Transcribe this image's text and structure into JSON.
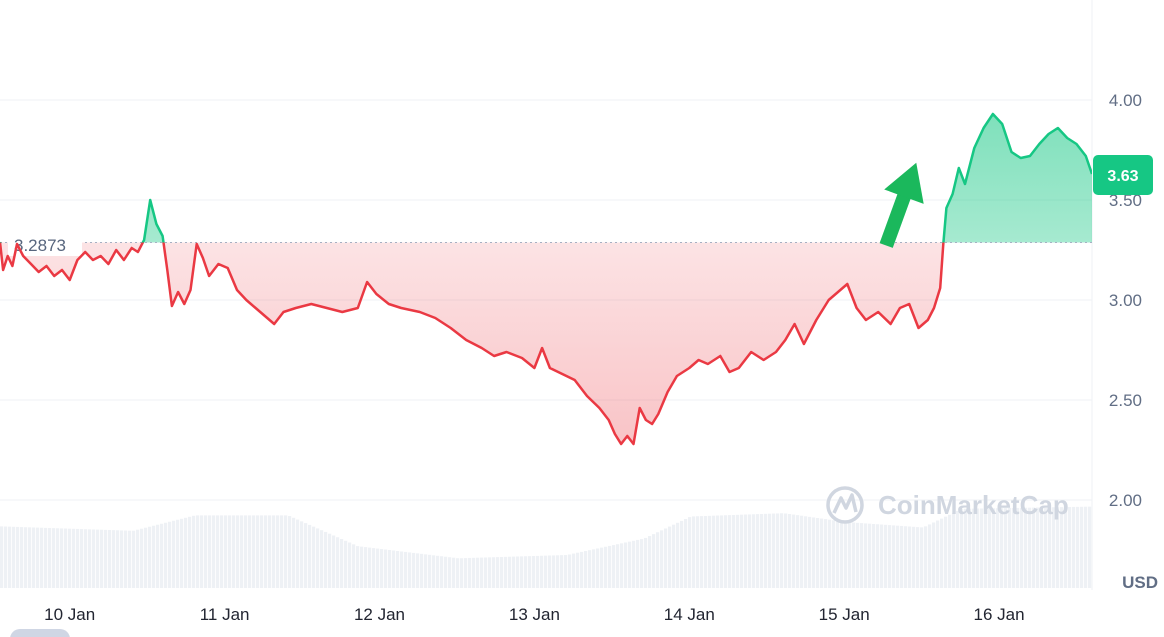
{
  "chart_data": {
    "type": "area",
    "unit": "USD",
    "reference_price": "3.2873",
    "current_price": "3.63",
    "ylim": [
      1.5,
      4.5
    ],
    "y_ticks": [
      "4.00",
      "3.50",
      "3.00",
      "2.50",
      "2.00"
    ],
    "x_ticks": [
      "10 Jan",
      "11 Jan",
      "12 Jan",
      "13 Jan",
      "14 Jan",
      "15 Jan",
      "16 Jan"
    ],
    "watermark": "CoinMarketCap",
    "colors": {
      "up": "#16c784",
      "down": "#ea3943",
      "grid": "#eff2f5",
      "badge": "#16c784",
      "arrow": "#1bb85c"
    },
    "annotations": [
      {
        "type": "arrow",
        "direction": "up",
        "color": "#1bb85c"
      }
    ],
    "series": [
      {
        "points": [
          [
            9.55,
            3.29
          ],
          [
            9.57,
            3.15
          ],
          [
            9.6,
            3.22
          ],
          [
            9.63,
            3.17
          ],
          [
            9.66,
            3.28
          ],
          [
            9.7,
            3.22
          ],
          [
            9.75,
            3.18
          ],
          [
            9.8,
            3.14
          ],
          [
            9.85,
            3.17
          ],
          [
            9.9,
            3.12
          ],
          [
            9.95,
            3.15
          ],
          [
            10.0,
            3.1
          ],
          [
            10.05,
            3.2
          ],
          [
            10.1,
            3.24
          ],
          [
            10.15,
            3.2
          ],
          [
            10.2,
            3.22
          ],
          [
            10.25,
            3.18
          ],
          [
            10.3,
            3.25
          ],
          [
            10.35,
            3.2
          ],
          [
            10.4,
            3.26
          ],
          [
            10.44,
            3.24
          ],
          [
            10.48,
            3.3
          ],
          [
            10.52,
            3.5
          ],
          [
            10.56,
            3.38
          ],
          [
            10.6,
            3.32
          ],
          [
            10.63,
            3.15
          ],
          [
            10.66,
            2.97
          ],
          [
            10.7,
            3.04
          ],
          [
            10.74,
            2.98
          ],
          [
            10.78,
            3.05
          ],
          [
            10.82,
            3.28
          ],
          [
            10.86,
            3.21
          ],
          [
            10.9,
            3.12
          ],
          [
            10.96,
            3.18
          ],
          [
            11.02,
            3.16
          ],
          [
            11.08,
            3.05
          ],
          [
            11.14,
            3.0
          ],
          [
            11.2,
            2.96
          ],
          [
            11.26,
            2.92
          ],
          [
            11.32,
            2.88
          ],
          [
            11.38,
            2.94
          ],
          [
            11.46,
            2.96
          ],
          [
            11.56,
            2.98
          ],
          [
            11.66,
            2.96
          ],
          [
            11.76,
            2.94
          ],
          [
            11.86,
            2.96
          ],
          [
            11.92,
            3.09
          ],
          [
            11.98,
            3.03
          ],
          [
            12.06,
            2.98
          ],
          [
            12.14,
            2.96
          ],
          [
            12.26,
            2.94
          ],
          [
            12.36,
            2.91
          ],
          [
            12.46,
            2.86
          ],
          [
            12.56,
            2.8
          ],
          [
            12.66,
            2.76
          ],
          [
            12.74,
            2.72
          ],
          [
            12.82,
            2.74
          ],
          [
            12.92,
            2.71
          ],
          [
            13.0,
            2.66
          ],
          [
            13.05,
            2.76
          ],
          [
            13.1,
            2.66
          ],
          [
            13.18,
            2.63
          ],
          [
            13.26,
            2.6
          ],
          [
            13.34,
            2.52
          ],
          [
            13.42,
            2.46
          ],
          [
            13.48,
            2.4
          ],
          [
            13.52,
            2.33
          ],
          [
            13.56,
            2.28
          ],
          [
            13.6,
            2.32
          ],
          [
            13.64,
            2.28
          ],
          [
            13.68,
            2.46
          ],
          [
            13.72,
            2.4
          ],
          [
            13.76,
            2.38
          ],
          [
            13.8,
            2.43
          ],
          [
            13.86,
            2.54
          ],
          [
            13.92,
            2.62
          ],
          [
            14.0,
            2.66
          ],
          [
            14.06,
            2.7
          ],
          [
            14.12,
            2.68
          ],
          [
            14.2,
            2.72
          ],
          [
            14.26,
            2.64
          ],
          [
            14.32,
            2.66
          ],
          [
            14.4,
            2.74
          ],
          [
            14.48,
            2.7
          ],
          [
            14.56,
            2.74
          ],
          [
            14.62,
            2.8
          ],
          [
            14.68,
            2.88
          ],
          [
            14.74,
            2.78
          ],
          [
            14.82,
            2.9
          ],
          [
            14.9,
            3.0
          ],
          [
            14.96,
            3.04
          ],
          [
            15.02,
            3.08
          ],
          [
            15.08,
            2.96
          ],
          [
            15.14,
            2.9
          ],
          [
            15.22,
            2.94
          ],
          [
            15.3,
            2.88
          ],
          [
            15.36,
            2.96
          ],
          [
            15.42,
            2.98
          ],
          [
            15.48,
            2.86
          ],
          [
            15.54,
            2.9
          ],
          [
            15.58,
            2.96
          ],
          [
            15.62,
            3.06
          ],
          [
            15.64,
            3.28
          ],
          [
            15.66,
            3.46
          ],
          [
            15.7,
            3.53
          ],
          [
            15.74,
            3.66
          ],
          [
            15.78,
            3.58
          ],
          [
            15.84,
            3.76
          ],
          [
            15.9,
            3.86
          ],
          [
            15.96,
            3.93
          ],
          [
            16.02,
            3.88
          ],
          [
            16.08,
            3.74
          ],
          [
            16.14,
            3.71
          ],
          [
            16.2,
            3.72
          ],
          [
            16.26,
            3.78
          ],
          [
            16.32,
            3.83
          ],
          [
            16.38,
            3.86
          ],
          [
            16.44,
            3.81
          ],
          [
            16.5,
            3.78
          ],
          [
            16.56,
            3.72
          ],
          [
            16.6,
            3.63
          ]
        ]
      }
    ]
  }
}
